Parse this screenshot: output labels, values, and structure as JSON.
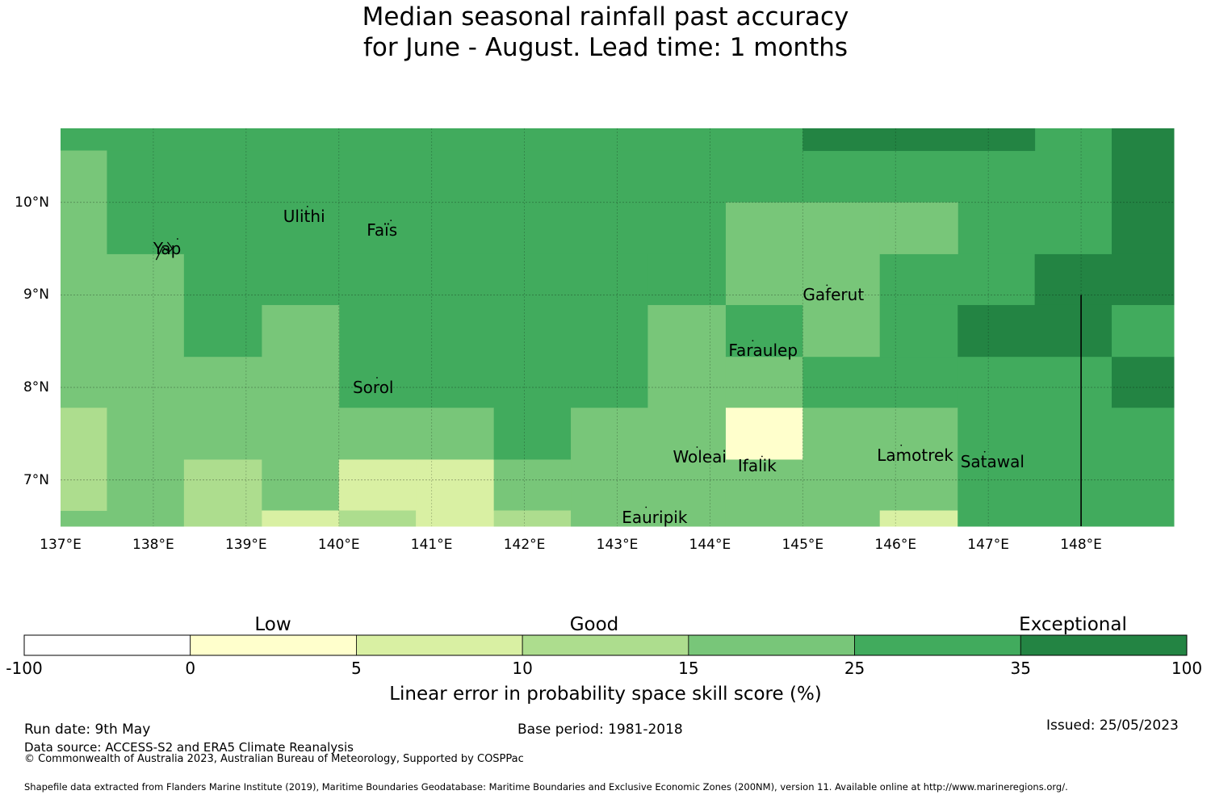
{
  "title": {
    "line1": "Median seasonal rainfall past accuracy",
    "line2": "for June - August. Lead time: 1 months"
  },
  "map": {
    "lat_labels": [
      "10°N",
      "9°N",
      "8°N",
      "7°N"
    ],
    "lon_labels": [
      "137°E",
      "138°E",
      "139°E",
      "140°E",
      "141°E",
      "142°E",
      "143°E",
      "144°E",
      "145°E",
      "146°E",
      "147°E",
      "148°E"
    ],
    "lon_range": [
      137,
      149
    ],
    "lat_range": [
      6.5,
      10.8
    ],
    "places": [
      {
        "name": "Yap",
        "lon": 138.0,
        "lat": 9.5
      },
      {
        "name": "Ulithi",
        "lon": 139.4,
        "lat": 9.85
      },
      {
        "name": "Faïs",
        "lon": 140.3,
        "lat": 9.7
      },
      {
        "name": "Gaferut",
        "lon": 145.0,
        "lat": 9.0
      },
      {
        "name": "Faraulep",
        "lon": 144.2,
        "lat": 8.4
      },
      {
        "name": "Sorol",
        "lon": 140.15,
        "lat": 8.0
      },
      {
        "name": "Woleai",
        "lon": 143.6,
        "lat": 7.25
      },
      {
        "name": "Ifalik",
        "lon": 144.3,
        "lat": 7.15
      },
      {
        "name": "Lamotrek",
        "lon": 145.8,
        "lat": 7.27
      },
      {
        "name": "Satawal",
        "lon": 146.7,
        "lat": 7.2
      },
      {
        "name": "Eauripik",
        "lon": 143.05,
        "lat": 6.6
      }
    ],
    "eez_boundary_lon": 148.0,
    "eez_boundary_lat_top": 9.0,
    "grid_cells": [
      {
        "lon0": 137.0,
        "lon1": 149.0,
        "lat0": 10.56,
        "lat1": 10.8,
        "cat": 5
      },
      {
        "lon0": 137.0,
        "lon1": 137.5,
        "lat0": 6.5,
        "lat1": 10.56,
        "cat": 4
      },
      {
        "lon0": 137.5,
        "lon1": 148.33,
        "lat0": 9.44,
        "lat1": 10.56,
        "cat": 5
      },
      {
        "lon0": 145.0,
        "lon1": 147.5,
        "lat0": 10.56,
        "lat1": 10.8,
        "cat": 6
      },
      {
        "lon0": 148.33,
        "lon1": 149.0,
        "lat0": 9.44,
        "lat1": 10.8,
        "cat": 6
      },
      {
        "lon0": 137.5,
        "lon1": 138.33,
        "lat0": 6.5,
        "lat1": 9.44,
        "cat": 4
      },
      {
        "lon0": 138.33,
        "lon1": 139.17,
        "lat0": 8.33,
        "lat1": 9.44,
        "cat": 5
      },
      {
        "lon0": 139.17,
        "lon1": 140.0,
        "lat0": 8.89,
        "lat1": 9.44,
        "cat": 5
      },
      {
        "lon0": 140.0,
        "lon1": 143.33,
        "lat0": 7.78,
        "lat1": 9.44,
        "cat": 5
      },
      {
        "lon0": 143.33,
        "lon1": 144.17,
        "lat0": 8.89,
        "lat1": 9.44,
        "cat": 5
      },
      {
        "lon0": 144.17,
        "lon1": 145.83,
        "lat0": 8.89,
        "lat1": 10.0,
        "cat": 4
      },
      {
        "lon0": 145.83,
        "lon1": 146.67,
        "lat0": 9.44,
        "lat1": 10.0,
        "cat": 4
      },
      {
        "lon0": 145.83,
        "lon1": 147.5,
        "lat0": 8.89,
        "lat1": 9.44,
        "cat": 5
      },
      {
        "lon0": 147.5,
        "lon1": 149.0,
        "lat0": 8.89,
        "lat1": 9.44,
        "cat": 6
      },
      {
        "lon0": 139.17,
        "lon1": 140.0,
        "lat0": 7.78,
        "lat1": 8.89,
        "cat": 4
      },
      {
        "lon0": 138.33,
        "lon1": 139.17,
        "lat0": 7.78,
        "lat1": 8.33,
        "cat": 4
      },
      {
        "lon0": 143.33,
        "lon1": 144.17,
        "lat0": 7.78,
        "lat1": 8.89,
        "cat": 4
      },
      {
        "lon0": 144.17,
        "lon1": 145.0,
        "lat0": 8.33,
        "lat1": 8.89,
        "cat": 5
      },
      {
        "lon0": 144.17,
        "lon1": 145.0,
        "lat0": 7.78,
        "lat1": 8.33,
        "cat": 4
      },
      {
        "lon0": 145.0,
        "lon1": 145.83,
        "lat0": 8.33,
        "lat1": 8.89,
        "cat": 4
      },
      {
        "lon0": 145.0,
        "lon1": 146.67,
        "lat0": 7.78,
        "lat1": 8.33,
        "cat": 5
      },
      {
        "lon0": 145.83,
        "lon1": 146.67,
        "lat0": 8.33,
        "lat1": 8.89,
        "cat": 5
      },
      {
        "lon0": 146.67,
        "lon1": 148.33,
        "lat0": 8.33,
        "lat1": 8.89,
        "cat": 6
      },
      {
        "lon0": 146.67,
        "lon1": 148.33,
        "lat0": 7.78,
        "lat1": 8.33,
        "cat": 5
      },
      {
        "lon0": 148.33,
        "lon1": 149.0,
        "lat0": 8.33,
        "lat1": 8.89,
        "cat": 5
      },
      {
        "lon0": 148.33,
        "lon1": 149.0,
        "lat0": 7.78,
        "lat1": 8.33,
        "cat": 6
      },
      {
        "lon0": 137.0,
        "lon1": 137.5,
        "lat0": 6.67,
        "lat1": 7.78,
        "cat": 3
      },
      {
        "lon0": 137.5,
        "lon1": 138.33,
        "lat0": 6.5,
        "lat1": 7.78,
        "cat": 4
      },
      {
        "lon0": 138.33,
        "lon1": 139.17,
        "lat0": 7.22,
        "lat1": 7.78,
        "cat": 4
      },
      {
        "lon0": 138.33,
        "lon1": 139.17,
        "lat0": 6.5,
        "lat1": 7.22,
        "cat": 3
      },
      {
        "lon0": 139.17,
        "lon1": 140.0,
        "lat0": 6.67,
        "lat1": 7.78,
        "cat": 4
      },
      {
        "lon0": 139.17,
        "lon1": 140.0,
        "lat0": 6.5,
        "lat1": 6.67,
        "cat": 2
      },
      {
        "lon0": 140.0,
        "lon1": 141.67,
        "lat0": 7.22,
        "lat1": 7.78,
        "cat": 4
      },
      {
        "lon0": 140.0,
        "lon1": 140.83,
        "lat0": 6.67,
        "lat1": 7.22,
        "cat": 2
      },
      {
        "lon0": 140.0,
        "lon1": 140.83,
        "lat0": 6.5,
        "lat1": 6.67,
        "cat": 3
      },
      {
        "lon0": 140.83,
        "lon1": 141.67,
        "lat0": 6.5,
        "lat1": 7.22,
        "cat": 2
      },
      {
        "lon0": 141.67,
        "lon1": 142.5,
        "lat0": 7.22,
        "lat1": 7.78,
        "cat": 5
      },
      {
        "lon0": 141.67,
        "lon1": 142.5,
        "lat0": 6.67,
        "lat1": 7.22,
        "cat": 4
      },
      {
        "lon0": 141.67,
        "lon1": 142.5,
        "lat0": 6.5,
        "lat1": 6.67,
        "cat": 3
      },
      {
        "lon0": 142.5,
        "lon1": 144.17,
        "lat0": 6.5,
        "lat1": 7.78,
        "cat": 4
      },
      {
        "lon0": 144.17,
        "lon1": 145.0,
        "lat0": 7.22,
        "lat1": 7.78,
        "cat": 1
      },
      {
        "lon0": 144.17,
        "lon1": 145.0,
        "lat0": 6.5,
        "lat1": 7.22,
        "cat": 4
      },
      {
        "lon0": 145.0,
        "lon1": 146.67,
        "lat0": 6.67,
        "lat1": 7.78,
        "cat": 4
      },
      {
        "lon0": 145.0,
        "lon1": 145.83,
        "lat0": 6.5,
        "lat1": 6.67,
        "cat": 4
      },
      {
        "lon0": 145.83,
        "lon1": 146.67,
        "lat0": 6.5,
        "lat1": 6.67,
        "cat": 2
      },
      {
        "lon0": 146.67,
        "lon1": 149.0,
        "lat0": 6.5,
        "lat1": 7.78,
        "cat": 5
      }
    ]
  },
  "colorbar": {
    "colors": [
      "#ffffff",
      "#ffffcc",
      "#d9f0a3",
      "#addd8e",
      "#78c679",
      "#41ab5d",
      "#238443"
    ],
    "ticks": [
      "-100",
      "0",
      "5",
      "10",
      "15",
      "25",
      "35",
      "100"
    ],
    "categories": [
      "Low",
      "Good",
      "Exceptional"
    ],
    "label": "Linear error in probability space skill score (%)"
  },
  "footer": {
    "run_date": "Run date: 9th May",
    "base_period": "Base period: 1981-2018",
    "issued": "Issued: 25/05/2023",
    "data_source": "Data source: ACCESS-S2 and ERA5 Climate Reanalysis",
    "copyright": "© Commonwealth of Australia 2023, Australian Bureau of Meteorology, Supported by COSPPac",
    "shapefile": "Shapefile data extracted from Flanders Marine Institute (2019), Maritime Boundaries Geodatabase: Maritime Boundaries and Exclusive Economic Zones (200NM), version 11. Available online at http://www.marineregions.org/."
  }
}
